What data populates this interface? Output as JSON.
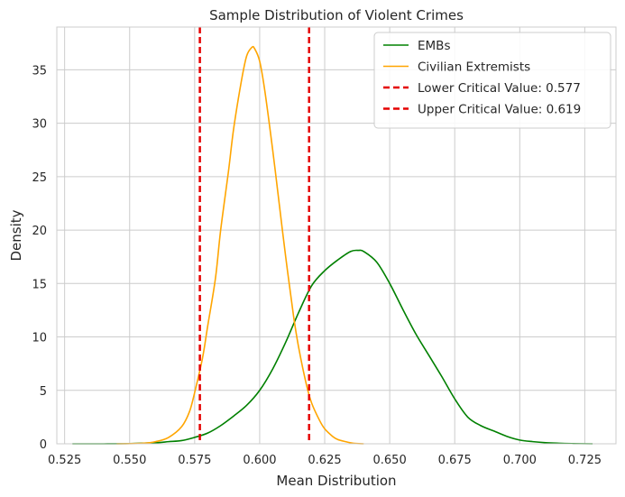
{
  "chart_data": {
    "type": "line",
    "title": "Sample Distribution of Violent Crimes",
    "xlabel": "Mean Distribution",
    "ylabel": "Density",
    "xlim": [
      0.522,
      0.737
    ],
    "ylim": [
      0,
      39
    ],
    "xticks": [
      0.525,
      0.55,
      0.575,
      0.6,
      0.625,
      0.65,
      0.675,
      0.7,
      0.725
    ],
    "xtick_labels": [
      "0.525",
      "0.550",
      "0.575",
      "0.600",
      "0.625",
      "0.650",
      "0.675",
      "0.700",
      "0.725"
    ],
    "yticks": [
      0,
      5,
      10,
      15,
      20,
      25,
      30,
      35
    ],
    "ytick_labels": [
      "0",
      "5",
      "10",
      "15",
      "20",
      "25",
      "30",
      "35"
    ],
    "grid": true,
    "legend_position": "top-right",
    "series": [
      {
        "name": "EMBs",
        "color": "#008000",
        "x": [
          0.528,
          0.54,
          0.55,
          0.56,
          0.565,
          0.57,
          0.575,
          0.58,
          0.585,
          0.59,
          0.595,
          0.6,
          0.605,
          0.61,
          0.615,
          0.62,
          0.625,
          0.63,
          0.635,
          0.638,
          0.64,
          0.645,
          0.65,
          0.655,
          0.66,
          0.665,
          0.67,
          0.675,
          0.68,
          0.685,
          0.69,
          0.695,
          0.7,
          0.705,
          0.71,
          0.715,
          0.72,
          0.728
        ],
        "y": [
          0,
          0,
          0.02,
          0.1,
          0.2,
          0.3,
          0.6,
          1.0,
          1.7,
          2.6,
          3.6,
          5.0,
          7.0,
          9.5,
          12.3,
          14.8,
          16.2,
          17.2,
          18.0,
          18.1,
          18.0,
          17.0,
          15.0,
          12.6,
          10.3,
          8.3,
          6.3,
          4.2,
          2.5,
          1.7,
          1.2,
          0.7,
          0.35,
          0.2,
          0.1,
          0.05,
          0.02,
          0
        ]
      },
      {
        "name": "Civilian Extremists",
        "color": "#FFA500",
        "x": [
          0.545,
          0.555,
          0.56,
          0.565,
          0.57,
          0.573,
          0.575,
          0.578,
          0.58,
          0.583,
          0.585,
          0.588,
          0.59,
          0.593,
          0.595,
          0.597,
          0.598,
          0.6,
          0.602,
          0.605,
          0.607,
          0.61,
          0.613,
          0.615,
          0.618,
          0.62,
          0.623,
          0.625,
          0.628,
          0.63,
          0.633,
          0.636,
          0.64
        ],
        "y": [
          0,
          0.05,
          0.2,
          0.6,
          1.6,
          3.0,
          4.8,
          8.0,
          11.0,
          15.5,
          20.0,
          25.5,
          29.5,
          34.0,
          36.3,
          37.1,
          37.0,
          35.8,
          33.0,
          27.5,
          23.5,
          17.5,
          12.0,
          9.0,
          5.5,
          3.8,
          2.2,
          1.4,
          0.7,
          0.4,
          0.2,
          0.05,
          0
        ]
      }
    ],
    "vlines": [
      {
        "name": "Lower Critical Value: 0.577",
        "x": 0.577,
        "color": "#e50000",
        "style": "dashed"
      },
      {
        "name": "Upper Critical Value: 0.619",
        "x": 0.619,
        "color": "#e50000",
        "style": "dashed"
      }
    ]
  }
}
